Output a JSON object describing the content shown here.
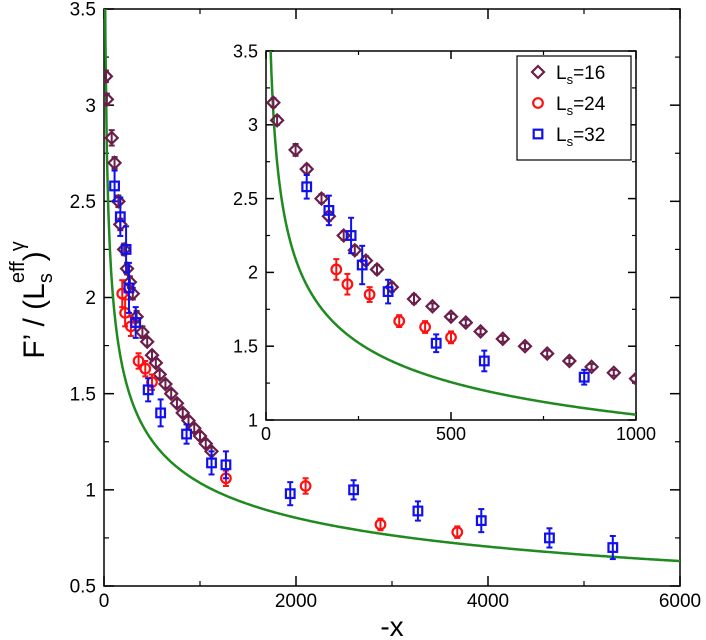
{
  "chart_data": [
    {
      "type": "scatter",
      "panel": "main",
      "xlabel": "-x",
      "ylabel_main": "F’ / (L",
      "ylabel_sub": "s",
      "ylabel_sup": "eff",
      "ylabel_exp": "γ",
      "ylabel_close": ")",
      "xlim": [
        0,
        6000
      ],
      "ylim": [
        0.5,
        3.5
      ],
      "xticks": [
        0,
        2000,
        4000,
        6000
      ],
      "yticks": [
        0.5,
        1,
        1.5,
        2,
        2.5,
        3,
        3.5
      ],
      "xtick_labels": [
        "0",
        "2000",
        "4000",
        "6000"
      ],
      "ytick_labels": [
        "0.5",
        "1",
        "1.5",
        "2",
        "2.5",
        "3",
        "3.5"
      ],
      "fit_curve": {
        "name": "fit",
        "color": "#1f8a1f",
        "form": "c * (-x)^p",
        "c": 7.07,
        "p": -0.278
      },
      "series": [
        {
          "name": "Ls=16",
          "marker": "diamond",
          "color": "#6b1e4a",
          "points": [
            [
              20,
              3.15,
              0.03
            ],
            [
              30,
              3.03,
              0.03
            ],
            [
              80,
              2.83,
              0.04
            ],
            [
              110,
              2.7,
              0.03
            ],
            [
              150,
              2.5,
              0.03
            ],
            [
              170,
              2.38,
              0.03
            ],
            [
              210,
              2.25,
              0.03
            ],
            [
              240,
              2.15,
              0.03
            ],
            [
              270,
              2.08,
              0.03
            ],
            [
              300,
              2.02,
              0.03
            ],
            [
              340,
              1.9,
              0.03
            ],
            [
              400,
              1.82,
              0.03
            ],
            [
              450,
              1.77,
              0.02
            ],
            [
              500,
              1.7,
              0.02
            ],
            [
              540,
              1.66,
              0.02
            ],
            [
              580,
              1.6,
              0.02
            ],
            [
              640,
              1.55,
              0.02
            ],
            [
              700,
              1.5,
              0.02
            ],
            [
              760,
              1.45,
              0.02
            ],
            [
              820,
              1.4,
              0.02
            ],
            [
              880,
              1.36,
              0.02
            ],
            [
              940,
              1.32,
              0.02
            ],
            [
              1000,
              1.28,
              0.02
            ],
            [
              1060,
              1.24,
              0.02
            ],
            [
              1120,
              1.2,
              0.02
            ]
          ]
        },
        {
          "name": "Ls=24",
          "marker": "circle",
          "color": "#ff1010",
          "points": [
            [
              190,
              2.02,
              0.07
            ],
            [
              220,
              1.92,
              0.07
            ],
            [
              280,
              1.85,
              0.05
            ],
            [
              360,
              1.67,
              0.04
            ],
            [
              430,
              1.63,
              0.04
            ],
            [
              500,
              1.56,
              0.04
            ],
            [
              1270,
              1.06,
              0.04
            ],
            [
              2100,
              1.02,
              0.04
            ],
            [
              2880,
              0.82,
              0.03
            ],
            [
              3680,
              0.78,
              0.03
            ]
          ]
        },
        {
          "name": "Ls=32",
          "marker": "square",
          "color": "#1010ee",
          "points": [
            [
              110,
              2.58,
              0.08
            ],
            [
              170,
              2.42,
              0.1
            ],
            [
              230,
              2.25,
              0.12
            ],
            [
              260,
              2.05,
              0.13
            ],
            [
              330,
              1.87,
              0.08
            ],
            [
              460,
              1.52,
              0.06
            ],
            [
              590,
              1.4,
              0.07
            ],
            [
              860,
              1.29,
              0.05
            ],
            [
              1120,
              1.14,
              0.06
            ],
            [
              1270,
              1.13,
              0.07
            ],
            [
              1940,
              0.98,
              0.06
            ],
            [
              2600,
              1.0,
              0.05
            ],
            [
              3270,
              0.89,
              0.05
            ],
            [
              3930,
              0.84,
              0.06
            ],
            [
              4640,
              0.75,
              0.05
            ],
            [
              5300,
              0.7,
              0.06
            ]
          ]
        }
      ]
    },
    {
      "type": "scatter",
      "panel": "inset",
      "xlim": [
        0,
        1000
      ],
      "ylim": [
        1,
        3.5
      ],
      "xticks": [
        0,
        500,
        1000
      ],
      "yticks": [
        1,
        1.5,
        2,
        2.5,
        3,
        3.5
      ],
      "xtick_labels": [
        "0",
        "500",
        "1000"
      ],
      "ytick_labels": [
        "1",
        "1.5",
        "2",
        "2.5",
        "3",
        "3.5"
      ],
      "xmax_shown": 1000,
      "legend": {
        "placement": "top-right",
        "entries": [
          {
            "label_main": "L",
            "label_sub": "s",
            "label_rest": "=16",
            "marker": "diamond",
            "color": "#6b1e4a"
          },
          {
            "label_main": "L",
            "label_sub": "s",
            "label_rest": "=24",
            "marker": "circle",
            "color": "#ff1010"
          },
          {
            "label_main": "L",
            "label_sub": "s",
            "label_rest": "=32",
            "marker": "square",
            "color": "#1010ee"
          }
        ]
      }
    }
  ]
}
